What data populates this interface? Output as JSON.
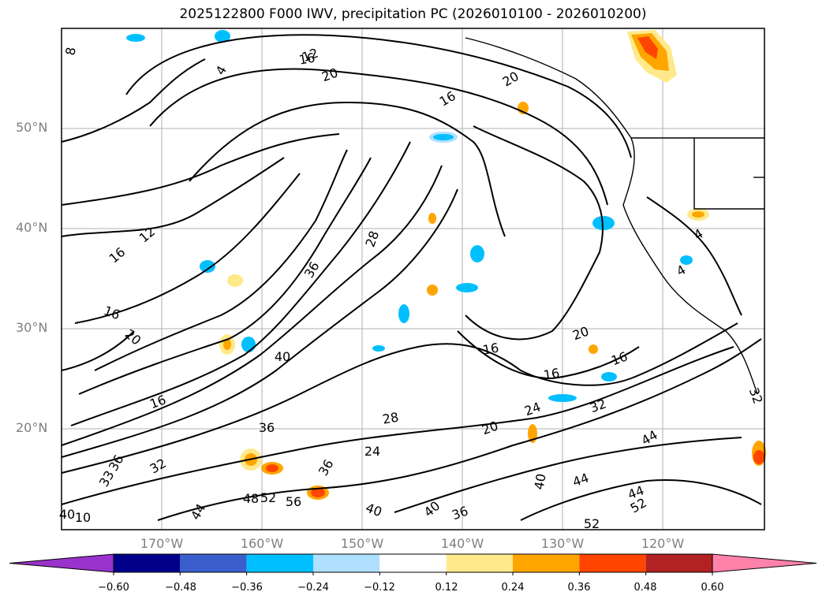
{
  "title": "2025122800 F000 IWV, precipitation PC (2026010100 - 2026010200)",
  "lat_labels": [
    "50°N",
    "40°N",
    "30°N",
    "20°N"
  ],
  "lon_labels": [
    "170°W",
    "160°W",
    "150°W",
    "140°W",
    "130°W",
    "120°W"
  ],
  "contour_labels": [
    "8",
    "4",
    "12",
    "20",
    "20",
    "16",
    "16",
    "12",
    "16",
    "36",
    "28",
    "40",
    "16",
    "20",
    "16",
    "20",
    "16",
    "16",
    "16",
    "24",
    "20",
    "28",
    "24",
    "32",
    "36",
    "33",
    "36",
    "32",
    "36",
    "48",
    "52",
    "56",
    "44",
    "40",
    "40",
    "36",
    "40",
    "44",
    "44",
    "52",
    "52",
    "44",
    "32",
    "4",
    "4",
    "10",
    "40"
  ],
  "colorbar": {
    "ticks": [
      "−0.60",
      "−0.48",
      "−0.36",
      "−0.24",
      "−0.12",
      "0.12",
      "0.24",
      "0.36",
      "0.48",
      "0.60"
    ],
    "colors": [
      "#9932cc",
      "#00008b",
      "#3a5fcd",
      "#00bfff",
      "#b0e0ff",
      "#ffffff",
      "#ffe98a",
      "#ffa500",
      "#ff4500",
      "#b22222",
      "#ff82ab"
    ]
  }
}
